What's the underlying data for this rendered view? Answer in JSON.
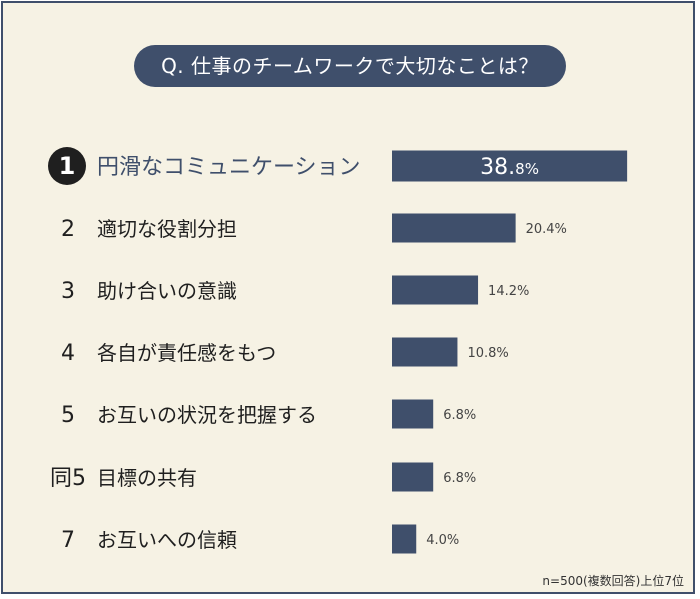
{
  "question": "Q. 仕事のチームワークで大切なことは？",
  "note": "n=500(複数回答)上位7位",
  "colors": {
    "bar": "#3f4f6b",
    "background": "#f6f2e4",
    "badge": "#1f1f1f"
  },
  "chart_data": {
    "type": "bar",
    "orientation": "horizontal",
    "categories": [
      "円滑なコミュニケーション",
      "適切な役割分担",
      "助け合いの意識",
      "各自が責任感をもつ",
      "お互いの状況を把握する",
      "目標の共有",
      "お互いへの信頼"
    ],
    "ranks": [
      "1",
      "2",
      "3",
      "4",
      "5",
      "同5",
      "7"
    ],
    "values": [
      38.8,
      20.4,
      14.2,
      10.8,
      6.8,
      6.8,
      4.0
    ],
    "value_labels": [
      "38.8%",
      "20.4%",
      "14.2%",
      "10.8%",
      "6.8%",
      "6.8%",
      "4.0%"
    ],
    "top_value_main": "38.",
    "top_value_rest": "8%",
    "title": "",
    "xlabel": "",
    "ylabel": "",
    "xlim": [
      0,
      40
    ],
    "grid": false,
    "legend": "none"
  }
}
